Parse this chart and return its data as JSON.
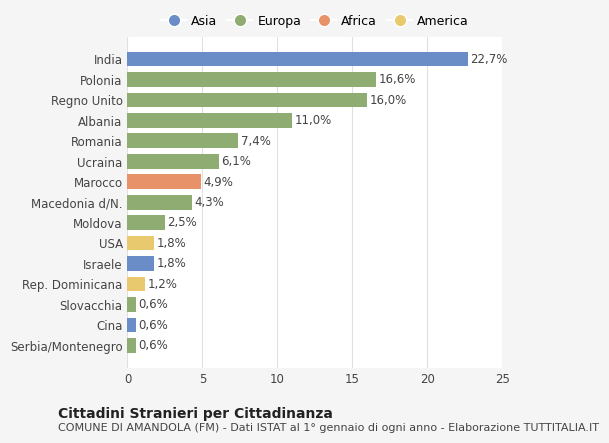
{
  "categories": [
    "Serbia/Montenegro",
    "Cina",
    "Slovacchia",
    "Rep. Dominicana",
    "Israele",
    "USA",
    "Moldova",
    "Macedonia d/N.",
    "Marocco",
    "Ucraina",
    "Romania",
    "Albania",
    "Regno Unito",
    "Polonia",
    "India"
  ],
  "values": [
    0.6,
    0.6,
    0.6,
    1.2,
    1.8,
    1.8,
    2.5,
    4.3,
    4.9,
    6.1,
    7.4,
    11.0,
    16.0,
    16.6,
    22.7
  ],
  "labels": [
    "0,6%",
    "0,6%",
    "0,6%",
    "1,2%",
    "1,8%",
    "1,8%",
    "2,5%",
    "4,3%",
    "4,9%",
    "6,1%",
    "7,4%",
    "11,0%",
    "16,0%",
    "16,6%",
    "22,7%"
  ],
  "colors": [
    "#8fac72",
    "#6b8dc7",
    "#8fac72",
    "#e8c96e",
    "#6b8dc7",
    "#e8c96e",
    "#8fac72",
    "#8fac72",
    "#e8926a",
    "#8fac72",
    "#8fac72",
    "#8fac72",
    "#8fac72",
    "#8fac72",
    "#6b8dc7"
  ],
  "legend_labels": [
    "Asia",
    "Europa",
    "Africa",
    "America"
  ],
  "legend_colors": [
    "#6b8dc7",
    "#8fac72",
    "#e8926a",
    "#e8c96e"
  ],
  "xlim": [
    0,
    25
  ],
  "xticks": [
    0,
    5,
    10,
    15,
    20,
    25
  ],
  "background_color": "#f5f5f5",
  "bar_background": "#ffffff",
  "grid_color": "#e0e0e0",
  "text_color": "#444444",
  "label_fontsize": 8.5,
  "tick_fontsize": 8.5,
  "title": "Cittadini Stranieri per Cittadinanza",
  "subtitle": "COMUNE DI AMANDOLA (FM) - Dati ISTAT al 1° gennaio di ogni anno - Elaborazione TUTTITALIA.IT",
  "title_fontsize": 10,
  "subtitle_fontsize": 8
}
